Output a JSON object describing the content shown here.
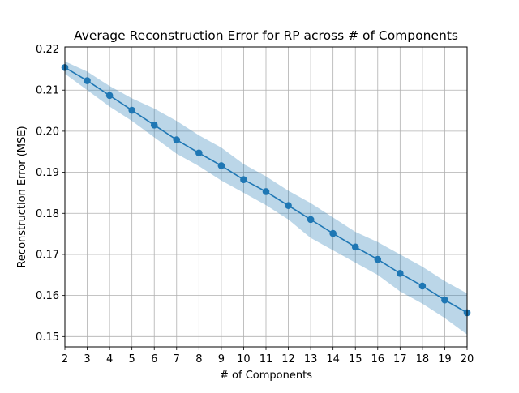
{
  "chart_data": {
    "type": "line",
    "title": "Average Reconstruction Error for RP across # of Components",
    "xlabel": "# of Components",
    "ylabel": "Reconstruction Error (MSE)",
    "xlim": [
      2,
      20
    ],
    "ylim": [
      0.1475,
      0.2205
    ],
    "x_ticks": [
      "2",
      "3",
      "4",
      "5",
      "6",
      "7",
      "8",
      "9",
      "10",
      "11",
      "12",
      "13",
      "14",
      "15",
      "16",
      "17",
      "18",
      "19",
      "20"
    ],
    "y_ticks": [
      "0.15",
      "0.16",
      "0.17",
      "0.18",
      "0.19",
      "0.20",
      "0.21",
      "0.22"
    ],
    "grid": true,
    "legend": "none",
    "series": [
      {
        "x": [
          2,
          3,
          4,
          5,
          6,
          7,
          8,
          9,
          10,
          11,
          12,
          13,
          14,
          15,
          16,
          17,
          18,
          19,
          20
        ],
        "values": [
          0.2155,
          0.2123,
          0.2087,
          0.2051,
          0.2015,
          0.1979,
          0.1947,
          0.1916,
          0.1882,
          0.1853,
          0.1819,
          0.1785,
          0.1751,
          0.1718,
          0.1688,
          0.1654,
          0.1623,
          0.1589,
          0.1558
        ],
        "upper": [
          0.217,
          0.2145,
          0.211,
          0.208,
          0.2055,
          0.2025,
          0.199,
          0.196,
          0.192,
          0.189,
          0.1855,
          0.1825,
          0.179,
          0.1755,
          0.173,
          0.17,
          0.167,
          0.1635,
          0.1605
        ],
        "lower": [
          0.214,
          0.21,
          0.206,
          0.2025,
          0.1985,
          0.1945,
          0.1915,
          0.188,
          0.185,
          0.182,
          0.1785,
          0.174,
          0.171,
          0.168,
          0.165,
          0.161,
          0.158,
          0.1545,
          0.1505
        ]
      }
    ],
    "colors": {
      "line": "#1f77b4",
      "band": "#1f77b4",
      "grid": "#b0b0b0"
    }
  }
}
